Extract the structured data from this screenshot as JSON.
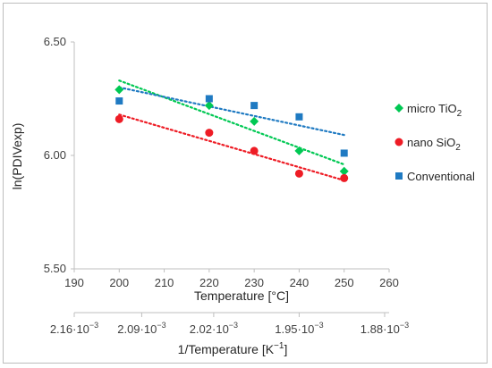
{
  "chart_data": {
    "type": "scatter",
    "title": "",
    "xlabel": "Temperature [°C]",
    "ylabel": "ln(PDIVexp)",
    "xlim": [
      190,
      260
    ],
    "ylim": [
      5.5,
      6.5
    ],
    "xticks": [
      "190",
      "200",
      "210",
      "220",
      "230",
      "240",
      "250",
      "260"
    ],
    "yticks": [
      "5.50",
      "6.00",
      "6.50"
    ],
    "grid": false,
    "legend_position": "right",
    "trendlines": "linear, dotted",
    "series": [
      {
        "name": "micro TiO",
        "name_subscript": "2",
        "marker": "diamond",
        "color": "#00c853",
        "x": [
          200,
          220,
          230,
          240,
          250
        ],
        "y": [
          6.29,
          6.22,
          6.15,
          6.02,
          5.93
        ],
        "trend": [
          6.33,
          5.96
        ]
      },
      {
        "name": "nano SiO",
        "name_subscript": "2",
        "marker": "circle",
        "color": "#ee1c25",
        "x": [
          200,
          220,
          230,
          240,
          250
        ],
        "y": [
          6.16,
          6.1,
          6.02,
          5.92,
          5.9
        ],
        "trend": [
          6.18,
          5.89
        ]
      },
      {
        "name": "Conventional",
        "name_subscript": "",
        "marker": "square",
        "color": "#1f7ac2",
        "x": [
          200,
          220,
          230,
          240,
          250
        ],
        "y": [
          6.24,
          6.25,
          6.22,
          6.17,
          6.01
        ],
        "trend": [
          6.3,
          6.09
        ]
      }
    ],
    "secondary_axis": {
      "xlabel": "1/Temperature [K",
      "xlabel_sup": "−1",
      "xlabel_end": "]",
      "ticks": [
        {
          "mantissa": "2.16·10",
          "exp": "−3",
          "at_temp": 190
        },
        {
          "mantissa": "2.09·10",
          "exp": "−3",
          "at_temp": 205
        },
        {
          "mantissa": "2.02·10",
          "exp": "−3",
          "at_temp": 221
        },
        {
          "mantissa": "1.95·10",
          "exp": "−3",
          "at_temp": 240
        },
        {
          "mantissa": "1.88·10",
          "exp": "−3",
          "at_temp": 259
        }
      ]
    }
  }
}
